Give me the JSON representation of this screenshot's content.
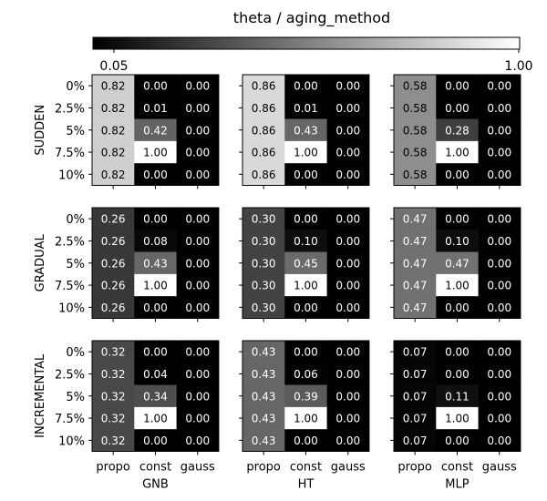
{
  "chart_data": {
    "type": "heatmap",
    "title": "theta / aging_method",
    "colorbar": {
      "min": 0.05,
      "max": 1.0,
      "min_label": "0.05",
      "max_label": "1.00",
      "colormap": "gray"
    },
    "row_labels": [
      "0%",
      "2.5%",
      "5%",
      "7.5%",
      "10%"
    ],
    "col_labels": [
      "propo",
      "const",
      "gauss"
    ],
    "panel_row_labels": [
      "SUDDEN",
      "GRADUAL",
      "INCREMENTAL"
    ],
    "panel_col_labels": [
      "GNB",
      "HT",
      "MLP"
    ],
    "panels": [
      [
        {
          "values": [
            [
              0.82,
              0.0,
              0.0
            ],
            [
              0.82,
              0.01,
              0.0
            ],
            [
              0.82,
              0.42,
              0.0
            ],
            [
              0.82,
              1.0,
              0.0
            ],
            [
              0.82,
              0.0,
              0.0
            ]
          ]
        },
        {
          "values": [
            [
              0.86,
              0.0,
              0.0
            ],
            [
              0.86,
              0.01,
              0.0
            ],
            [
              0.86,
              0.43,
              0.0
            ],
            [
              0.86,
              1.0,
              0.0
            ],
            [
              0.86,
              0.0,
              0.0
            ]
          ]
        },
        {
          "values": [
            [
              0.58,
              0.0,
              0.0
            ],
            [
              0.58,
              0.0,
              0.0
            ],
            [
              0.58,
              0.28,
              0.0
            ],
            [
              0.58,
              1.0,
              0.0
            ],
            [
              0.58,
              0.0,
              0.0
            ]
          ]
        }
      ],
      [
        {
          "values": [
            [
              0.26,
              0.0,
              0.0
            ],
            [
              0.26,
              0.08,
              0.0
            ],
            [
              0.26,
              0.43,
              0.0
            ],
            [
              0.26,
              1.0,
              0.0
            ],
            [
              0.26,
              0.0,
              0.0
            ]
          ]
        },
        {
          "values": [
            [
              0.3,
              0.0,
              0.0
            ],
            [
              0.3,
              0.1,
              0.0
            ],
            [
              0.3,
              0.45,
              0.0
            ],
            [
              0.3,
              1.0,
              0.0
            ],
            [
              0.3,
              0.0,
              0.0
            ]
          ]
        },
        {
          "values": [
            [
              0.47,
              0.0,
              0.0
            ],
            [
              0.47,
              0.1,
              0.0
            ],
            [
              0.47,
              0.47,
              0.0
            ],
            [
              0.47,
              1.0,
              0.0
            ],
            [
              0.47,
              0.0,
              0.0
            ]
          ]
        }
      ],
      [
        {
          "values": [
            [
              0.32,
              0.0,
              0.0
            ],
            [
              0.32,
              0.04,
              0.0
            ],
            [
              0.32,
              0.34,
              0.0
            ],
            [
              0.32,
              1.0,
              0.0
            ],
            [
              0.32,
              0.0,
              0.0
            ]
          ]
        },
        {
          "values": [
            [
              0.43,
              0.0,
              0.0
            ],
            [
              0.43,
              0.06,
              0.0
            ],
            [
              0.43,
              0.39,
              0.0
            ],
            [
              0.43,
              1.0,
              0.0
            ],
            [
              0.43,
              0.0,
              0.0
            ]
          ]
        },
        {
          "values": [
            [
              0.07,
              0.0,
              0.0
            ],
            [
              0.07,
              0.0,
              0.0
            ],
            [
              0.07,
              0.11,
              0.0
            ],
            [
              0.07,
              1.0,
              0.0
            ],
            [
              0.07,
              0.0,
              0.0
            ]
          ]
        }
      ]
    ]
  }
}
